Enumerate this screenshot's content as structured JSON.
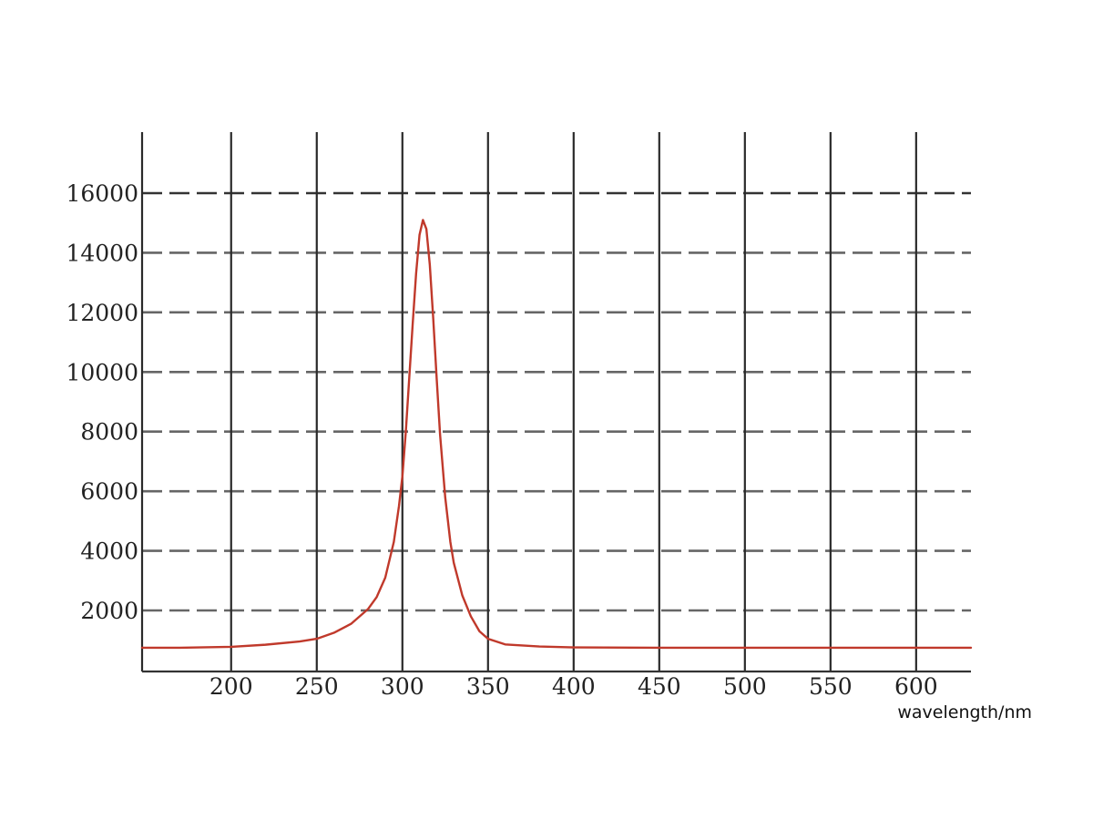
{
  "chart_data": {
    "type": "line",
    "title": "",
    "xlabel": "wavelength/nm",
    "ylabel": "",
    "xlim": [
      148,
      632
    ],
    "ylim": [
      0,
      18000
    ],
    "x_ticks": [
      200,
      250,
      300,
      350,
      400,
      450,
      500,
      550,
      600
    ],
    "x_tick_labels": [
      "200",
      "250",
      "300",
      "350",
      "400",
      "450",
      "500",
      "550",
      "600"
    ],
    "y_ticks": [
      2000,
      4000,
      6000,
      8000,
      10000,
      12000,
      14000,
      16000
    ],
    "y_tick_labels": [
      "2000",
      "4000",
      "6000",
      "8000",
      "10000",
      "12000",
      "14000",
      "16000"
    ],
    "x_gridlines": [
      148,
      200,
      250,
      300,
      350,
      400,
      450,
      500,
      550,
      600
    ],
    "grid": true,
    "legend": "none",
    "series": [
      {
        "color": "#c0392b",
        "x": [
          148,
          170,
          200,
          220,
          240,
          250,
          260,
          270,
          280,
          285,
          290,
          295,
          298,
          300,
          302,
          304,
          306,
          308,
          310,
          312,
          314,
          316,
          318,
          320,
          322,
          325,
          328,
          330,
          335,
          340,
          345,
          350,
          360,
          380,
          400,
          450,
          500,
          550,
          600,
          632
        ],
        "y": [
          750,
          750,
          780,
          850,
          960,
          1050,
          1250,
          1550,
          2050,
          2450,
          3100,
          4300,
          5500,
          6500,
          8000,
          9800,
          11600,
          13300,
          14600,
          15100,
          14800,
          13600,
          11800,
          9800,
          7900,
          5800,
          4300,
          3600,
          2500,
          1800,
          1300,
          1050,
          860,
          790,
          760,
          750,
          750,
          750,
          750,
          750
        ]
      }
    ]
  }
}
